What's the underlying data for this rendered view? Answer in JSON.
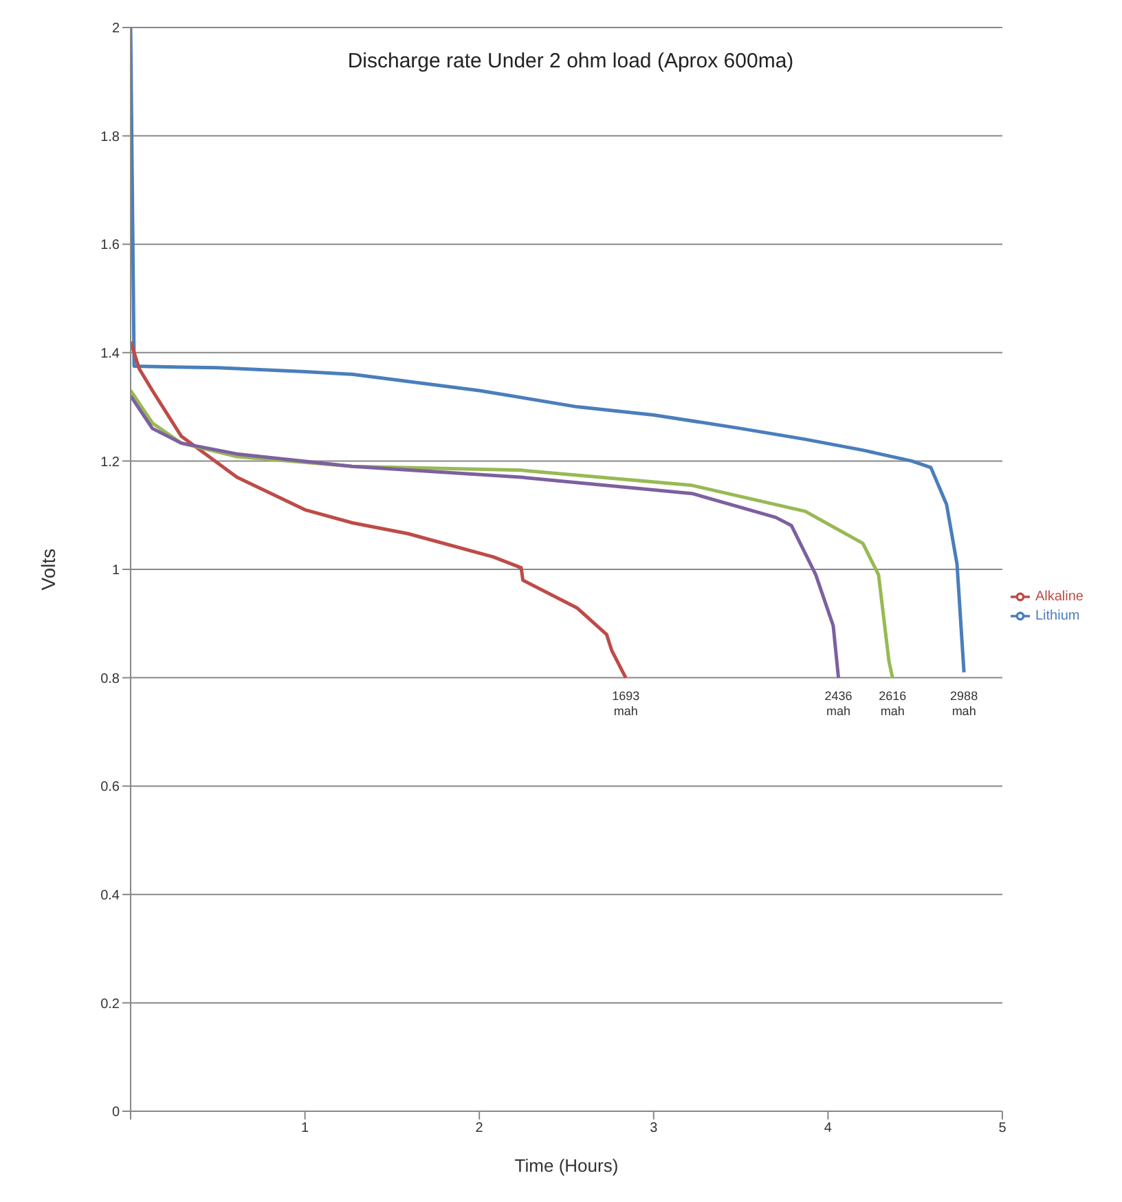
{
  "chart_data": {
    "type": "line",
    "title": "Discharge rate Under 2 ohm load (Aprox 600ma)",
    "xlabel": "Time (Hours)",
    "ylabel": "Volts",
    "xlim": [
      0,
      5
    ],
    "xticks": [
      {
        "value": 0,
        "label": null
      },
      1,
      2,
      3,
      4,
      5
    ],
    "ylim": [
      0,
      2
    ],
    "yticks": [
      0,
      0.2,
      0.4,
      0.6,
      0.8,
      1,
      1.2,
      1.4,
      1.6,
      1.8,
      2
    ],
    "grid": "y",
    "legend": "right",
    "marker": "none",
    "line_style": "solid",
    "series": [
      {
        "name": "Lithium",
        "color": "#4a7ebb",
        "x": [
          0,
          0.02,
          0.5,
          1,
          1.27,
          2,
          2.56,
          3,
          3.5,
          3.87,
          4.2,
          4.48,
          4.59,
          4.68,
          4.74,
          4.78
        ],
        "values": [
          2,
          1.375,
          1.372,
          1.365,
          1.36,
          1.33,
          1.3,
          1.285,
          1.26,
          1.24,
          1.22,
          1.2,
          1.188,
          1.12,
          1.01,
          0.81
        ]
      },
      {
        "name": "Alkaline",
        "color": "#be4b48",
        "x": [
          0,
          0.05,
          0.125,
          0.29,
          0.61,
          1,
          1.27,
          1.59,
          2.08,
          2.24,
          2.25,
          2.56,
          2.73,
          2.76,
          2.84
        ],
        "values": [
          1.42,
          1.37,
          1.33,
          1.246,
          1.17,
          1.11,
          1.086,
          1.066,
          1.023,
          1.003,
          0.98,
          0.929,
          0.88,
          0.85,
          0.8
        ]
      },
      {
        "color": "#98b954",
        "x": [
          0,
          0.125,
          0.29,
          0.61,
          1.27,
          2.24,
          3.22,
          3.87,
          4.2,
          4.29,
          4.35,
          4.37
        ],
        "values": [
          1.33,
          1.27,
          1.233,
          1.208,
          1.19,
          1.183,
          1.155,
          1.107,
          1.048,
          0.99,
          0.83,
          0.8
        ]
      },
      {
        "color": "#7d60a0",
        "x": [
          0,
          0.125,
          0.29,
          0.61,
          1.27,
          2.24,
          3.22,
          3.7,
          3.79,
          3.93,
          4.03,
          4.06
        ],
        "values": [
          1.32,
          1.26,
          1.233,
          1.213,
          1.19,
          1.17,
          1.14,
          1.096,
          1.081,
          0.99,
          0.896,
          0.8
        ]
      }
    ],
    "annotations": [
      {
        "text": "1693 mah",
        "x": 2.84,
        "y": 0.8
      },
      {
        "text": "2436 mah",
        "x": 4.06,
        "y": 0.8
      },
      {
        "text": "2616 mah",
        "x": 4.37,
        "y": 0.8
      },
      {
        "text": "2988 mah",
        "x": 4.78,
        "y": 0.8
      }
    ]
  }
}
